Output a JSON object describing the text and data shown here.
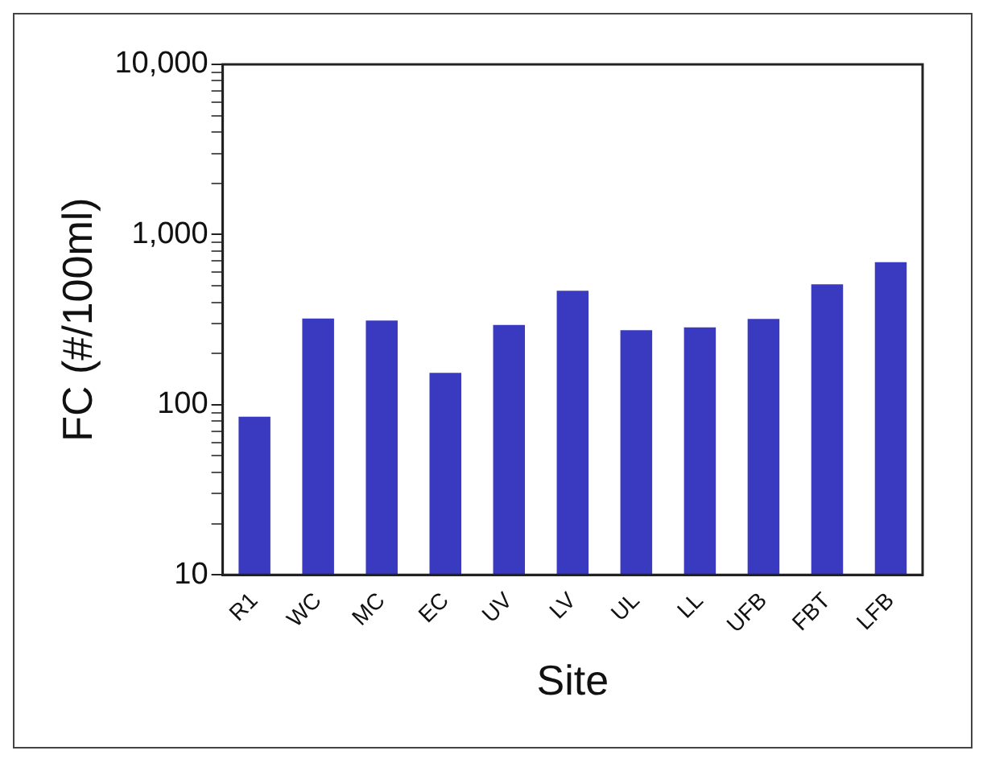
{
  "chart_data": {
    "type": "bar",
    "xlabel": "Site",
    "ylabel": "FC (#/100ml)",
    "categories": [
      "R1",
      "WC",
      "MC",
      "EC",
      "UV",
      "LV",
      "UL",
      "LL",
      "UFB",
      "FBT",
      "LFB"
    ],
    "values": [
      85,
      321,
      312,
      154,
      294,
      467,
      274,
      285,
      319,
      510,
      688
    ],
    "color": "#3a3ac0",
    "log": true,
    "ylim": [
      10,
      10000
    ],
    "yticks": [
      10,
      {
        "value": 20,
        "label": null
      },
      {
        "value": 30,
        "label": null
      },
      {
        "value": 40,
        "label": null
      },
      {
        "value": 50,
        "label": null
      },
      {
        "value": 60,
        "label": null
      },
      {
        "value": 70,
        "label": null
      },
      {
        "value": 80,
        "label": null
      },
      {
        "value": 90,
        "label": null
      },
      {
        "value": 100,
        "label": "100"
      },
      {
        "value": 200,
        "label": null
      },
      {
        "value": 300,
        "label": null
      },
      {
        "value": 400,
        "label": null
      },
      {
        "value": 500,
        "label": null
      },
      {
        "value": 600,
        "label": null
      },
      {
        "value": 700,
        "label": null
      },
      {
        "value": 800,
        "label": null
      },
      {
        "value": 900,
        "label": null
      },
      {
        "value": 1000,
        "label": "1,000"
      },
      {
        "value": 2000,
        "label": null
      },
      {
        "value": 3000,
        "label": null
      },
      {
        "value": 4000,
        "label": null
      },
      {
        "value": 5000,
        "label": null
      },
      {
        "value": 6000,
        "label": null
      },
      {
        "value": 7000,
        "label": null
      },
      {
        "value": 8000,
        "label": null
      },
      {
        "value": 9000,
        "label": null
      },
      {
        "value": 10000,
        "label": "10,000"
      }
    ],
    "grid": false,
    "legend": false
  }
}
